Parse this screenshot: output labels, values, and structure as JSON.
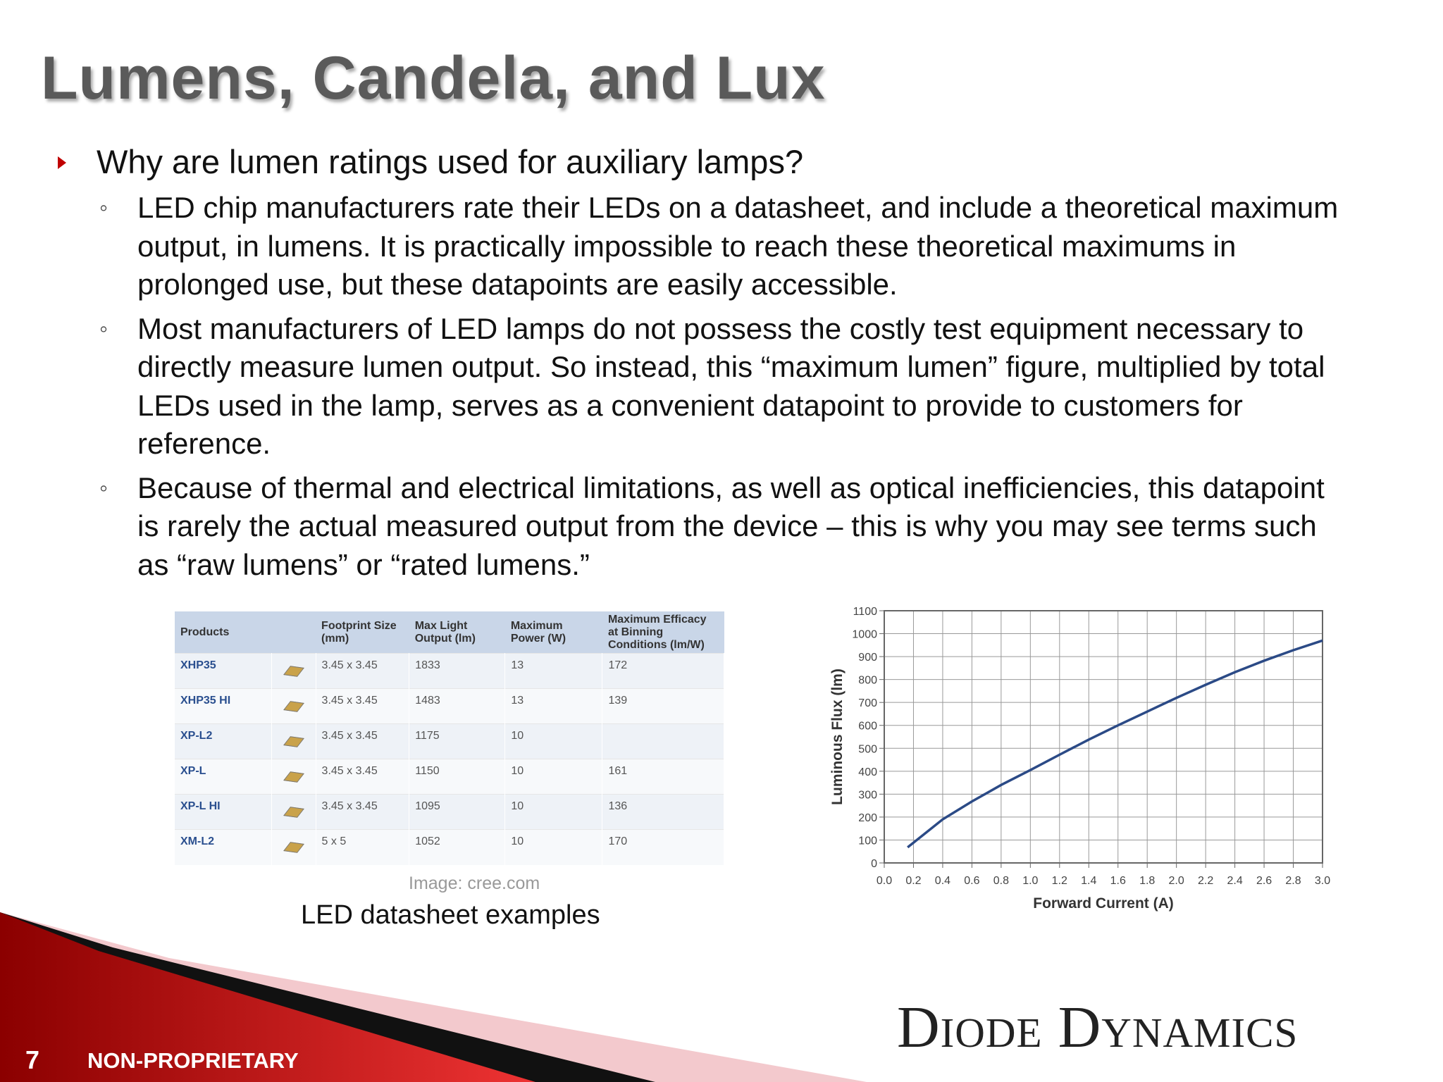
{
  "title": "Lumens, Candela, and Lux",
  "bullets": [
    {
      "text": "Why are lumen ratings used for auxiliary lamps?",
      "sub": [
        "LED chip manufacturers rate their LEDs on a datasheet, and include a theoretical maximum output, in lumens. It is practically impossible to reach these theoretical maximums in prolonged use, but these datapoints are easily accessible.",
        "Most manufacturers of LED lamps do not possess the costly test equipment necessary to directly measure lumen output. So instead, this “maximum lumen” figure, multiplied by total LEDs used in the lamp, serves as a convenient datapoint to provide to customers for reference.",
        "Because of thermal and electrical limitations, as well as optical inefficiencies, this datapoint is rarely the actual measured output from the device – this is why you may see terms such as “raw lumens” or “rated lumens.”"
      ]
    }
  ],
  "table": {
    "headers": [
      "Products",
      null,
      "Footprint Size (mm)",
      "Max Light Output (lm)",
      "Maximum Power (W)",
      "Maximum Efficacy at Binning Conditions (lm/W)"
    ],
    "rows": [
      [
        "XHP35",
        null,
        "3.45 x 3.45",
        "1833",
        "13",
        "172"
      ],
      [
        "XHP35 HI",
        null,
        "3.45 x 3.45",
        "1483",
        "13",
        "139"
      ],
      [
        "XP-L2",
        null,
        "3.45 x 3.45",
        "1175",
        "10",
        null
      ],
      [
        "XP-L",
        null,
        "3.45 x 3.45",
        "1150",
        "10",
        "161"
      ],
      [
        "XP-L HI",
        null,
        "3.45 x 3.45",
        "1095",
        "10",
        "136"
      ],
      [
        "XM-L2",
        null,
        "5 x 5",
        "1052",
        "10",
        "170"
      ]
    ]
  },
  "image_credit": "Image: cree.com",
  "caption": "LED datasheet examples",
  "logo": "Diode Dynamics",
  "footer": {
    "page": "7",
    "label": "NON-PROPRIETARY"
  },
  "chart_data": {
    "type": "line",
    "xlabel": "Forward Current (A)",
    "ylabel": "Luminous Flux (lm)",
    "x": [
      0.16,
      0.4,
      0.6,
      0.8,
      1.0,
      1.2,
      1.4,
      1.6,
      1.8,
      2.0,
      2.2,
      2.4,
      2.6,
      2.8,
      3.0
    ],
    "values": [
      68,
      190,
      268,
      340,
      405,
      472,
      538,
      600,
      660,
      720,
      777,
      832,
      882,
      928,
      970
    ],
    "color": "#2b4a86",
    "grid": true,
    "xlim": [
      0,
      3.0
    ],
    "ylim": [
      0,
      1100
    ],
    "xticks": [
      {
        "value": 0,
        "label": "0.0"
      },
      0.2,
      0.4,
      0.6,
      0.8,
      {
        "value": 1,
        "label": "1.0"
      },
      1.2,
      1.4,
      1.6,
      1.8,
      {
        "value": 2,
        "label": "2.0"
      },
      2.2,
      2.4,
      2.6,
      2.8,
      {
        "value": 3,
        "label": "3.0"
      }
    ],
    "yticks": [
      0,
      100,
      200,
      300,
      400,
      500,
      600,
      700,
      800,
      900,
      1000,
      1100
    ]
  }
}
